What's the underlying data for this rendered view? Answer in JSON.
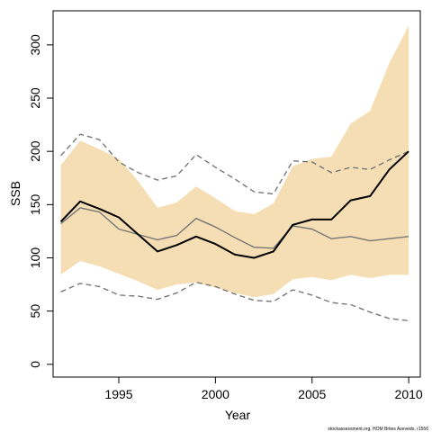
{
  "chart_data": {
    "type": "line",
    "title": "",
    "xlabel": "Year",
    "ylabel": "SSB",
    "xlim": [
      1991.6,
      2010.6
    ],
    "ylim": [
      -12,
      332
    ],
    "x_ticks": [
      1995,
      2000,
      2005,
      2010
    ],
    "y_ticks": [
      0,
      50,
      100,
      150,
      200,
      250,
      300
    ],
    "x": [
      1992,
      1993,
      1994,
      1995,
      1996,
      1997,
      1998,
      1999,
      2000,
      2001,
      2002,
      2003,
      2004,
      2005,
      2006,
      2007,
      2008,
      2009,
      2010
    ],
    "band": {
      "color": "#f5deb3",
      "upper": [
        187,
        210,
        202,
        193,
        172,
        147,
        152,
        167,
        156,
        144,
        141,
        151,
        186,
        193,
        195,
        226,
        238,
        283,
        318
      ],
      "lower": [
        84,
        97,
        92,
        85,
        78,
        70,
        75,
        77,
        72,
        67,
        63,
        66,
        80,
        82,
        79,
        84,
        81,
        84,
        84
      ]
    },
    "series": [
      {
        "style": "solid-black",
        "color": "#000000",
        "values": [
          134,
          153,
          146,
          138,
          122,
          106,
          112,
          120,
          113,
          103,
          100,
          106,
          131,
          136,
          136,
          154,
          158,
          183,
          200
        ]
      },
      {
        "style": "solid-grey",
        "color": "#777777",
        "values": [
          132,
          147,
          143,
          127,
          122,
          117,
          121,
          137,
          129,
          119,
          110,
          109,
          130,
          127,
          118,
          120,
          116,
          118,
          120
        ]
      },
      {
        "style": "dashed-upper",
        "color": "#777777",
        "values": [
          196,
          216,
          211,
          190,
          180,
          173,
          177,
          197,
          185,
          174,
          162,
          160,
          191,
          190,
          180,
          185,
          183,
          192,
          200
        ]
      },
      {
        "style": "dashed-lower",
        "color": "#777777",
        "values": [
          68,
          76,
          73,
          65,
          64,
          61,
          67,
          77,
          73,
          66,
          60,
          59,
          70,
          65,
          58,
          56,
          49,
          43,
          41
        ]
      }
    ],
    "grid": false,
    "legend": "none"
  },
  "footer_note": "stockassessment.org,  HOM  Brites  Azevedo,  r1556"
}
